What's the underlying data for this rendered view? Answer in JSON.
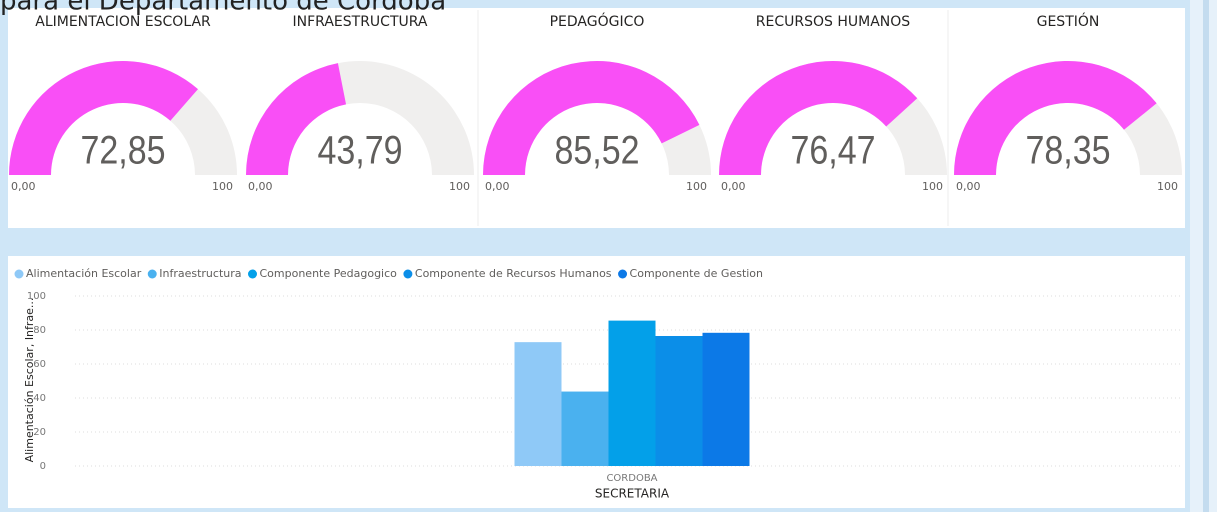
{
  "header": {
    "title": "para el Departamento de Córdoba"
  },
  "chart_data": [
    {
      "type": "gauge",
      "title": "ALIMENTACION ESCOLAR",
      "value": 72.85,
      "value_label": "72,85",
      "min": {
        "value": 0,
        "label": "0,00"
      },
      "max": 100,
      "color": "#f94ff6"
    },
    {
      "type": "gauge",
      "title": "INFRAESTRUCTURA",
      "value": 43.79,
      "value_label": "43,79",
      "min": {
        "value": 0,
        "label": "0,00"
      },
      "max": 100,
      "color": "#f94ff6"
    },
    {
      "type": "gauge",
      "title": "PEDAGÓGICO",
      "value": 85.52,
      "value_label": "85,52",
      "min": {
        "value": 0,
        "label": "0,00"
      },
      "max": 100,
      "color": "#f94ff6"
    },
    {
      "type": "gauge",
      "title": "RECURSOS HUMANOS",
      "value": 76.47,
      "value_label": "76,47",
      "min": {
        "value": 0,
        "label": "0,00"
      },
      "max": 100,
      "color": "#f94ff6"
    },
    {
      "type": "gauge",
      "title": "GESTIÓN",
      "value": 78.35,
      "value_label": "78,35",
      "min": {
        "value": 0,
        "label": "0,00"
      },
      "max": 100,
      "color": "#f94ff6"
    },
    {
      "type": "bar",
      "x_label": "SECRETARIA",
      "y_label": "Alimentación Escolar, Infrae...",
      "categories": [
        "CORDOBA"
      ],
      "series": [
        {
          "name": "Alimentación Escolar",
          "color": "#8fc9f7",
          "values": [
            72.85
          ]
        },
        {
          "name": "Infraestructura",
          "color": "#4ab1ef",
          "values": [
            43.79
          ]
        },
        {
          "name": "Componente Pedagogico",
          "color": "#03a0e9",
          "values": [
            85.52
          ]
        },
        {
          "name": "Componente de Recursos Humanos",
          "color": "#0b8ee8",
          "values": [
            76.47
          ]
        },
        {
          "name": "Componente de Gestion",
          "color": "#0c79e7",
          "values": [
            78.35
          ]
        }
      ],
      "ylim": [
        0,
        100
      ],
      "yticks": [
        0,
        20,
        40,
        60,
        80,
        100
      ],
      "grid": true,
      "legend": "top-left"
    }
  ]
}
